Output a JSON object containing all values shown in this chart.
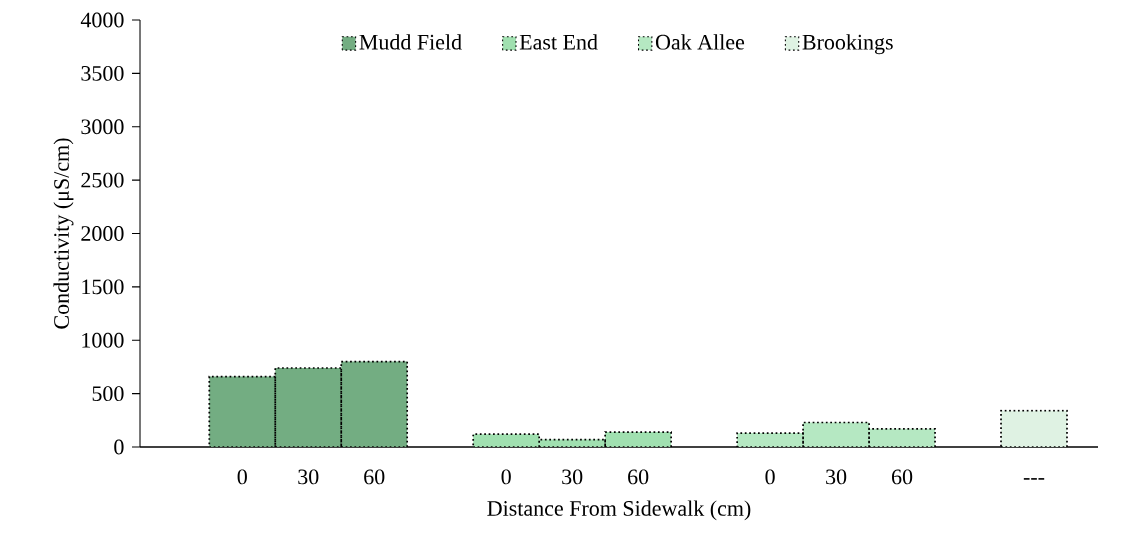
{
  "chart_data": {
    "type": "bar",
    "xlabel": "Distance From Sidewalk (cm)",
    "ylabel": "Conductivity (μS/cm)",
    "categories": [
      "0",
      "30",
      "60",
      "0",
      "30",
      "60",
      "0",
      "30",
      "60",
      "---"
    ],
    "series": [
      {
        "name": "Mudd Field",
        "color": "#73ad82",
        "values": [
          660,
          740,
          800,
          null,
          null,
          null,
          null,
          null,
          null,
          null
        ]
      },
      {
        "name": "East End",
        "color": "#a0e0b0",
        "values": [
          null,
          null,
          null,
          120,
          70,
          140,
          null,
          null,
          null,
          null
        ]
      },
      {
        "name": "Oak Allee",
        "color": "#b5e8c2",
        "values": [
          null,
          null,
          null,
          null,
          null,
          null,
          130,
          230,
          170,
          null
        ]
      },
      {
        "name": "Brookings",
        "color": "#dff2e3",
        "values": [
          null,
          null,
          null,
          null,
          null,
          null,
          null,
          null,
          null,
          340
        ]
      }
    ],
    "ylim": [
      0,
      4000
    ],
    "yticks": [
      0,
      500,
      1000,
      1500,
      2000,
      2500,
      3000,
      3500,
      4000
    ],
    "grid": false,
    "legend": "top",
    "line_style": "dotted"
  }
}
